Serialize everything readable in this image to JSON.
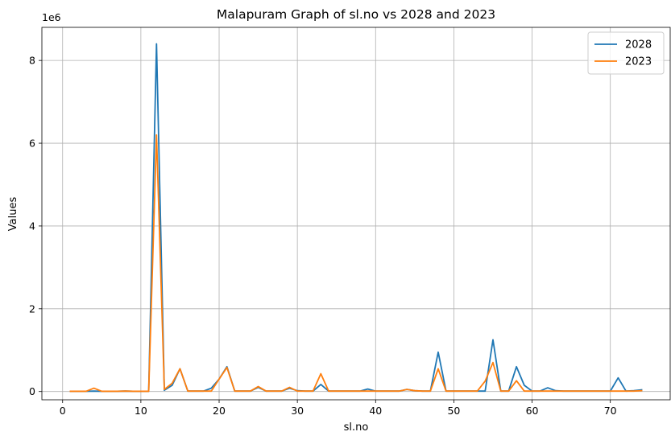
{
  "chart_data": {
    "type": "line",
    "title": "Malapuram Graph of sl.no vs 2028 and 2023",
    "xlabel": "sl.no",
    "ylabel": "Values",
    "y_offset_text": "1e6",
    "xlim": [
      -2.65,
      77.65
    ],
    "ylim": [
      -200000,
      8800000
    ],
    "x_ticks": [
      0,
      10,
      20,
      30,
      40,
      50,
      60,
      70
    ],
    "y_ticks": [
      0,
      2000000,
      4000000,
      6000000,
      8000000
    ],
    "y_tick_labels": [
      "0",
      "2",
      "4",
      "6",
      "8"
    ],
    "grid": true,
    "legend": "top-right",
    "x": [
      1,
      2,
      3,
      4,
      5,
      6,
      7,
      8,
      9,
      10,
      11,
      12,
      13,
      14,
      15,
      16,
      17,
      18,
      19,
      20,
      21,
      22,
      23,
      24,
      25,
      26,
      27,
      28,
      29,
      30,
      31,
      32,
      33,
      34,
      35,
      36,
      37,
      38,
      39,
      40,
      41,
      42,
      43,
      44,
      45,
      46,
      47,
      48,
      49,
      50,
      51,
      52,
      53,
      54,
      55,
      56,
      57,
      58,
      59,
      60,
      61,
      62,
      63,
      64,
      65,
      66,
      67,
      68,
      69,
      70,
      71,
      72,
      73,
      74
    ],
    "series": [
      {
        "name": "2028",
        "color": "#1f77b4",
        "values": [
          5000,
          5000,
          5000,
          10000,
          5000,
          5000,
          5000,
          10000,
          5000,
          5000,
          5000,
          8400000,
          30000,
          150000,
          550000,
          10000,
          10000,
          10000,
          80000,
          300000,
          600000,
          10000,
          10000,
          10000,
          100000,
          10000,
          10000,
          10000,
          80000,
          20000,
          10000,
          10000,
          170000,
          10000,
          10000,
          10000,
          10000,
          10000,
          60000,
          10000,
          10000,
          10000,
          10000,
          50000,
          20000,
          10000,
          10000,
          950000,
          10000,
          10000,
          10000,
          10000,
          10000,
          10000,
          1250000,
          10000,
          10000,
          600000,
          150000,
          10000,
          10000,
          90000,
          20000,
          10000,
          10000,
          10000,
          10000,
          10000,
          10000,
          10000,
          330000,
          10000,
          20000,
          40000
        ]
      },
      {
        "name": "2023",
        "color": "#ff7f0e",
        "values": [
          5000,
          5000,
          5000,
          80000,
          5000,
          5000,
          5000,
          10000,
          5000,
          5000,
          5000,
          6200000,
          50000,
          200000,
          550000,
          10000,
          10000,
          10000,
          10000,
          300000,
          580000,
          10000,
          10000,
          10000,
          120000,
          10000,
          10000,
          10000,
          100000,
          10000,
          10000,
          10000,
          430000,
          10000,
          10000,
          10000,
          10000,
          10000,
          10000,
          10000,
          10000,
          10000,
          10000,
          50000,
          20000,
          10000,
          10000,
          550000,
          10000,
          10000,
          10000,
          10000,
          10000,
          250000,
          700000,
          10000,
          10000,
          260000,
          10000,
          10000,
          10000,
          10000,
          10000,
          10000,
          10000,
          10000,
          10000,
          10000,
          10000,
          10000,
          10000,
          10000,
          10000,
          20000
        ]
      }
    ]
  }
}
